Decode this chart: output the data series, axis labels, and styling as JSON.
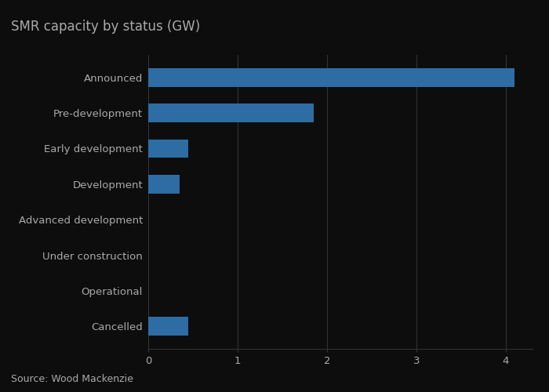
{
  "title": "SMR capacity by status (GW)",
  "categories": [
    "Announced",
    "Pre-development",
    "Early development",
    "Development",
    "Advanced development",
    "Under construction",
    "Operational",
    "Cancelled"
  ],
  "values": [
    4.1,
    1.85,
    0.45,
    0.35,
    0.0,
    0.0,
    0.0,
    0.45
  ],
  "bar_color": "#2d6da3",
  "background_color": "#0d0d0d",
  "plot_bg_color": "#0d0d0d",
  "text_color": "#aaaaaa",
  "grid_color": "#333333",
  "xlim": [
    0,
    4.3
  ],
  "xticks": [
    0,
    1,
    2,
    3,
    4
  ],
  "source_text": "Source: Wood Mackenzie",
  "title_fontsize": 12,
  "tick_fontsize": 9.5,
  "source_fontsize": 9,
  "bar_height": 0.52
}
